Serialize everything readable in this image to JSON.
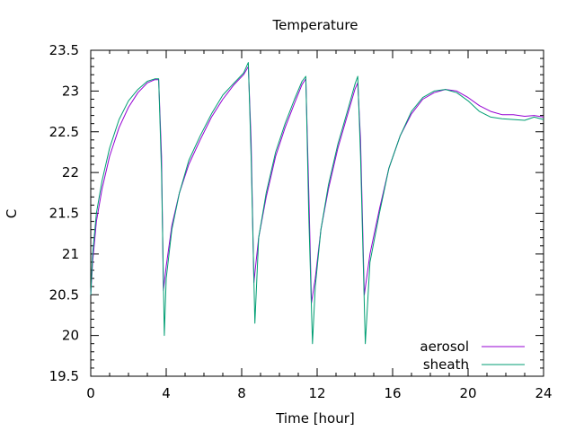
{
  "chart_data": {
    "type": "line",
    "title": "Temperature",
    "xlabel": "Time [hour]",
    "ylabel": "C",
    "xlim": [
      0,
      24
    ],
    "ylim": [
      19.5,
      23.5
    ],
    "xticks": [
      0,
      4,
      8,
      12,
      16,
      20,
      24
    ],
    "yticks": [
      19.5,
      20,
      20.5,
      21,
      21.5,
      22,
      22.5,
      23,
      23.5
    ],
    "grid": false,
    "legend_position": "bottom-right",
    "series": [
      {
        "name": "aerosol",
        "color": "#9400d3",
        "x": [
          0,
          0.1,
          0.3,
          0.6,
          1.0,
          1.5,
          2.0,
          2.5,
          3.0,
          3.4,
          3.6,
          3.75,
          3.85,
          4.0,
          4.3,
          4.7,
          5.2,
          5.8,
          6.4,
          7.0,
          7.6,
          8.1,
          8.35,
          8.5,
          8.65,
          8.9,
          9.3,
          9.8,
          10.3,
          10.8,
          11.2,
          11.4,
          11.55,
          11.7,
          11.9,
          12.2,
          12.6,
          13.1,
          13.6,
          14.0,
          14.15,
          14.3,
          14.5,
          14.8,
          15.3,
          15.8,
          16.4,
          17.0,
          17.6,
          18.2,
          18.8,
          19.4,
          20.0,
          20.6,
          21.2,
          21.8,
          22.4,
          23.0,
          23.5,
          24.0
        ],
        "y": [
          20.5,
          20.9,
          21.4,
          21.8,
          22.2,
          22.55,
          22.8,
          22.98,
          23.1,
          23.14,
          23.14,
          22.2,
          20.55,
          20.85,
          21.35,
          21.75,
          22.1,
          22.4,
          22.68,
          22.9,
          23.08,
          23.2,
          23.3,
          22.4,
          20.65,
          21.2,
          21.7,
          22.2,
          22.55,
          22.85,
          23.08,
          23.15,
          21.8,
          20.4,
          20.7,
          21.3,
          21.8,
          22.3,
          22.7,
          23.02,
          23.1,
          22.4,
          20.5,
          21.0,
          21.55,
          22.05,
          22.45,
          22.72,
          22.9,
          22.98,
          23.02,
          23.0,
          22.92,
          22.82,
          22.75,
          22.71,
          22.71,
          22.69,
          22.7,
          22.68
        ]
      },
      {
        "name": "sheath",
        "color": "#009e73",
        "x": [
          0,
          0.1,
          0.3,
          0.6,
          1.0,
          1.5,
          2.0,
          2.5,
          3.0,
          3.4,
          3.6,
          3.75,
          3.9,
          4.0,
          4.3,
          4.7,
          5.2,
          5.8,
          6.4,
          7.0,
          7.6,
          8.1,
          8.35,
          8.5,
          8.7,
          8.9,
          9.3,
          9.8,
          10.3,
          10.8,
          11.2,
          11.4,
          11.55,
          11.75,
          11.9,
          12.2,
          12.6,
          13.1,
          13.6,
          14.0,
          14.15,
          14.3,
          14.55,
          14.8,
          15.3,
          15.8,
          16.4,
          17.0,
          17.6,
          18.2,
          18.8,
          19.4,
          20.0,
          20.6,
          21.2,
          21.8,
          22.4,
          23.0,
          23.5,
          24.0
        ],
        "y": [
          20.5,
          21.0,
          21.5,
          21.9,
          22.3,
          22.65,
          22.88,
          23.02,
          23.12,
          23.15,
          23.15,
          22.0,
          20.0,
          20.7,
          21.3,
          21.75,
          22.15,
          22.45,
          22.72,
          22.95,
          23.1,
          23.22,
          23.35,
          22.2,
          20.15,
          21.2,
          21.75,
          22.25,
          22.6,
          22.9,
          23.12,
          23.18,
          21.5,
          19.9,
          20.6,
          21.3,
          21.85,
          22.35,
          22.75,
          23.08,
          23.18,
          22.2,
          19.9,
          20.9,
          21.5,
          22.05,
          22.45,
          22.75,
          22.92,
          23.0,
          23.02,
          22.98,
          22.88,
          22.75,
          22.68,
          22.66,
          22.65,
          22.64,
          22.68,
          22.65
        ]
      }
    ]
  }
}
